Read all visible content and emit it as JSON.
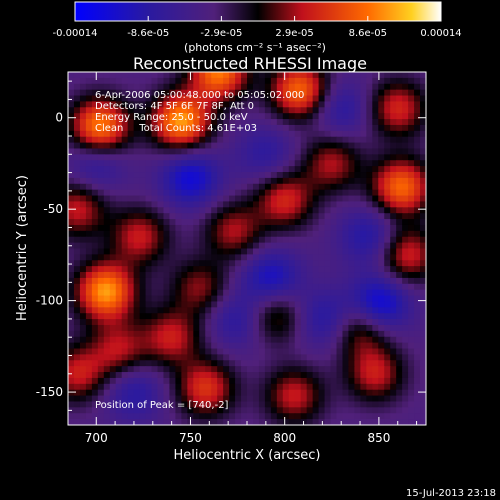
{
  "chart_data": {
    "type": "heatmap",
    "title": "Reconstructed RHESSI Image",
    "xlabel": "Heliocentric X (arcsec)",
    "ylabel": "Heliocentric Y (arcsec)",
    "xlim": [
      685,
      875
    ],
    "ylim": [
      -168,
      25
    ],
    "x_ticks": [
      700,
      750,
      800,
      850
    ],
    "y_ticks": [
      0,
      -50,
      -100,
      -150
    ],
    "colorbar": {
      "range": [
        -0.00014,
        0.00014
      ],
      "tick_labels": [
        "-0.00014",
        "-8.6e-05",
        "-2.9e-05",
        "2.9e-05",
        "8.6e-05",
        "0.00014"
      ],
      "units_label": "(photons cm⁻² s⁻¹ asec⁻²)"
    },
    "annotations": {
      "time_range": "6-Apr-2006 05:00:48.000 to 05:05:02.000",
      "detectors": "Detectors: 4F 5F 6F 7F 8F, Att 0",
      "energy_range": "Energy Range: 25.0 - 50.0 keV",
      "clean_counts": "Clean     Total Counts: 4.61E+03",
      "peak_position": "Position of Peak = [740,-2]"
    },
    "timestamp": "15-Jul-2013 23:18",
    "blobs": [
      {
        "x": 705,
        "y": -95,
        "v": 1.0
      },
      {
        "x": 702,
        "y": -5,
        "v": 0.95
      },
      {
        "x": 745,
        "y": -2,
        "v": 1.0
      },
      {
        "x": 765,
        "y": 25,
        "v": 0.9
      },
      {
        "x": 808,
        "y": 15,
        "v": 0.85
      },
      {
        "x": 862,
        "y": -38,
        "v": 0.85
      },
      {
        "x": 860,
        "y": 5,
        "v": 0.6
      },
      {
        "x": 690,
        "y": -50,
        "v": 0.55
      },
      {
        "x": 723,
        "y": -65,
        "v": 0.55
      },
      {
        "x": 773,
        "y": -62,
        "v": 0.5
      },
      {
        "x": 800,
        "y": -45,
        "v": 0.6
      },
      {
        "x": 825,
        "y": -25,
        "v": 0.5
      },
      {
        "x": 740,
        "y": -120,
        "v": 0.55
      },
      {
        "x": 690,
        "y": -140,
        "v": 0.55
      },
      {
        "x": 712,
        "y": -127,
        "v": 0.5
      },
      {
        "x": 758,
        "y": -148,
        "v": 0.65
      },
      {
        "x": 805,
        "y": -152,
        "v": 0.55
      },
      {
        "x": 848,
        "y": -140,
        "v": 0.55
      },
      {
        "x": 865,
        "y": -75,
        "v": 0.6
      },
      {
        "x": 755,
        "y": -93,
        "v": 0.45
      },
      {
        "x": 840,
        "y": -115,
        "v": 0.5
      },
      {
        "x": 795,
        "y": -108,
        "v": 0.45
      },
      {
        "x": 850,
        "y": -102,
        "v": -0.65
      },
      {
        "x": 750,
        "y": -33,
        "v": -0.55
      },
      {
        "x": 793,
        "y": -88,
        "v": -0.5
      },
      {
        "x": 822,
        "y": -110,
        "v": -0.4
      },
      {
        "x": 775,
        "y": -110,
        "v": -0.35
      },
      {
        "x": 845,
        "y": -65,
        "v": -0.4
      },
      {
        "x": 720,
        "y": -150,
        "v": -0.35
      },
      {
        "x": 700,
        "y": -25,
        "v": -0.35
      },
      {
        "x": 830,
        "y": 5,
        "v": -0.35
      },
      {
        "x": 790,
        "y": -20,
        "v": -0.3
      }
    ]
  }
}
